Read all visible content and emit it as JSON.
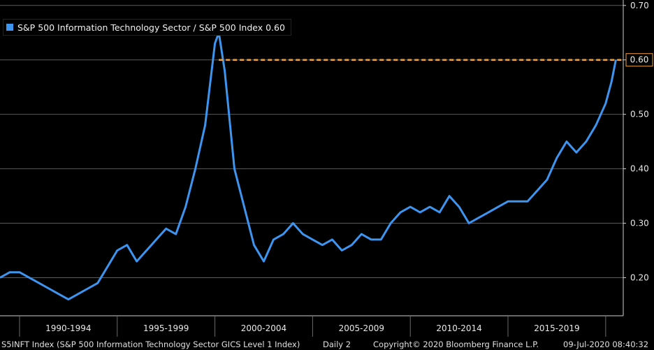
{
  "chart_data": {
    "type": "line",
    "title": "",
    "xlabel": "",
    "ylabel": "",
    "ylim": [
      0.13,
      0.71
    ],
    "yticks": [
      "0.20",
      "0.30",
      "0.40",
      "0.50",
      "0.60",
      "0.70"
    ],
    "x_periods": [
      "1990-1994",
      "1995-1999",
      "2000-2004",
      "2005-2009",
      "2010-2014",
      "2015-2019"
    ],
    "grid": true,
    "legend_position": "top-left",
    "reference_line": {
      "value": 0.6,
      "label": "0.60",
      "color": "#f0a040"
    },
    "last_value_label": "0.60",
    "series": [
      {
        "name": "S&P 500 Information Technology Sector / S&P 500 Index 0.60",
        "color": "#3d95f0",
        "x": [
          1989.0,
          1989.5,
          1990.0,
          1990.5,
          1991.0,
          1991.5,
          1992.0,
          1992.5,
          1993.0,
          1993.5,
          1994.0,
          1994.5,
          1995.0,
          1995.5,
          1996.0,
          1996.5,
          1997.0,
          1997.5,
          1998.0,
          1998.5,
          1999.0,
          1999.5,
          2000.0,
          2000.2,
          2000.5,
          2001.0,
          2001.5,
          2002.0,
          2002.5,
          2003.0,
          2003.5,
          2004.0,
          2004.5,
          2005.0,
          2005.5,
          2006.0,
          2006.5,
          2007.0,
          2007.5,
          2008.0,
          2008.5,
          2009.0,
          2009.5,
          2010.0,
          2010.5,
          2011.0,
          2011.5,
          2012.0,
          2012.5,
          2013.0,
          2013.5,
          2014.0,
          2014.5,
          2015.0,
          2015.5,
          2016.0,
          2016.5,
          2017.0,
          2017.5,
          2018.0,
          2018.5,
          2019.0,
          2019.5,
          2020.0,
          2020.3,
          2020.52
        ],
        "values": [
          0.2,
          0.21,
          0.21,
          0.2,
          0.19,
          0.18,
          0.17,
          0.16,
          0.17,
          0.18,
          0.19,
          0.22,
          0.25,
          0.26,
          0.23,
          0.25,
          0.27,
          0.29,
          0.28,
          0.33,
          0.4,
          0.48,
          0.63,
          0.65,
          0.58,
          0.4,
          0.33,
          0.26,
          0.23,
          0.27,
          0.28,
          0.3,
          0.28,
          0.27,
          0.26,
          0.27,
          0.25,
          0.26,
          0.28,
          0.27,
          0.27,
          0.3,
          0.32,
          0.33,
          0.32,
          0.33,
          0.32,
          0.35,
          0.33,
          0.3,
          0.31,
          0.32,
          0.33,
          0.34,
          0.34,
          0.34,
          0.36,
          0.38,
          0.42,
          0.45,
          0.43,
          0.45,
          0.48,
          0.52,
          0.56,
          0.6
        ]
      }
    ]
  },
  "footer": {
    "ticker": "S5INFT Index (S&P 500 Information Technology Sector GICS Level 1 Index)",
    "frequency": "Daily 2",
    "copyright": "Copyright© 2020 Bloomberg Finance L.P.",
    "timestamp": "09-Jul-2020 08:40:32"
  }
}
